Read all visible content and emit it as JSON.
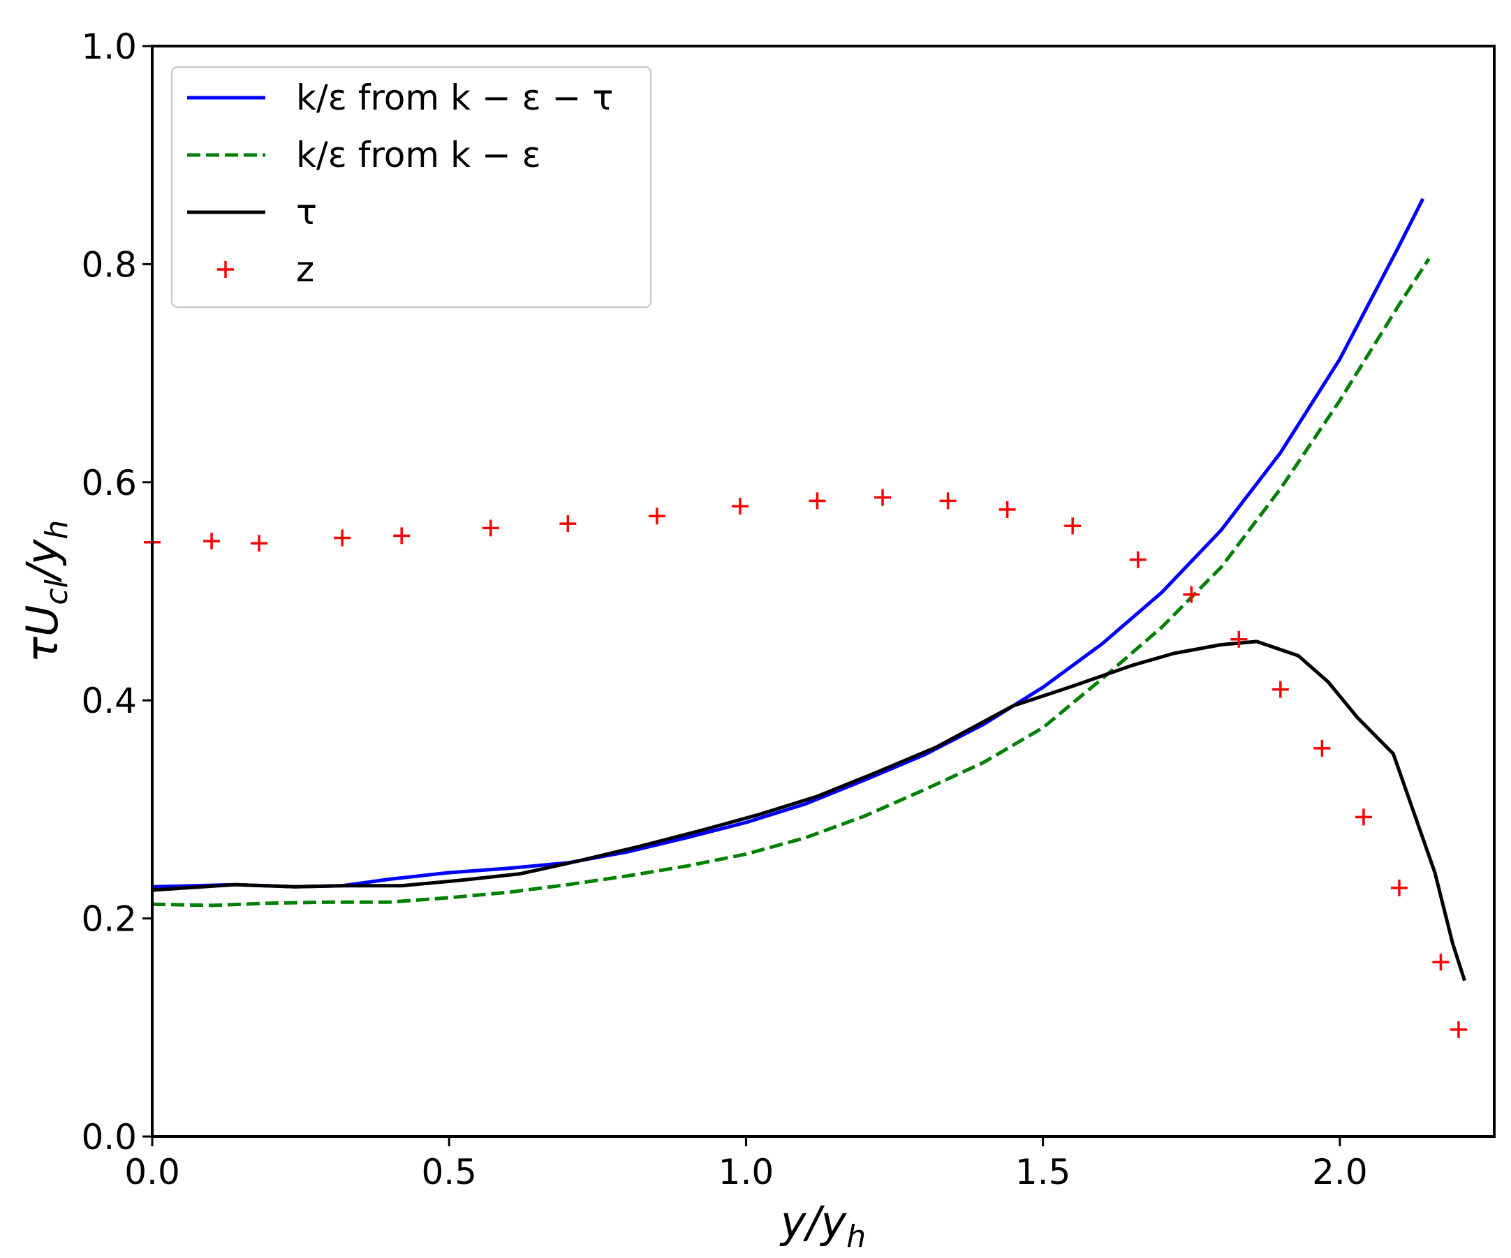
{
  "chart_data": {
    "type": "line",
    "xlabel": "y/y_h",
    "ylabel": "τU_cl/y_h",
    "xlabel_parts": {
      "base": "y/y",
      "sub": "h"
    },
    "ylabel_parts": {
      "pre": "τU",
      "sub1": "cl",
      "mid": "/y",
      "sub2": "h"
    },
    "xlim": [
      0.0,
      2.26
    ],
    "ylim": [
      0.0,
      1.0
    ],
    "xticks": [
      0.0,
      0.5,
      1.0,
      1.5,
      2.0
    ],
    "xtick_labels": [
      "0.0",
      "0.5",
      "1.0",
      "1.5",
      "2.0"
    ],
    "yticks": [
      0.0,
      0.2,
      0.4,
      0.6,
      0.8,
      1.0
    ],
    "ytick_labels": [
      "0.0",
      "0.2",
      "0.4",
      "0.6",
      "0.8",
      "1.0"
    ],
    "grid": false,
    "legend_position": "upper-left",
    "series": [
      {
        "name": "k/ε from k − ε − τ",
        "style": "solid",
        "color": "#0000ff",
        "x": [
          0.0,
          0.14,
          0.24,
          0.32,
          0.4,
          0.5,
          0.6,
          0.7,
          0.8,
          0.9,
          1.0,
          1.1,
          1.2,
          1.3,
          1.4,
          1.5,
          1.6,
          1.7,
          1.8,
          1.9,
          2.0,
          2.1,
          2.14
        ],
        "y": [
          0.229,
          0.231,
          0.229,
          0.23,
          0.236,
          0.242,
          0.246,
          0.251,
          0.261,
          0.274,
          0.288,
          0.305,
          0.327,
          0.35,
          0.378,
          0.412,
          0.452,
          0.499,
          0.556,
          0.627,
          0.713,
          0.817,
          0.86
        ]
      },
      {
        "name": "k/ε from k − ε",
        "style": "dashed",
        "color": "#008000",
        "x": [
          0.0,
          0.1,
          0.2,
          0.3,
          0.4,
          0.5,
          0.6,
          0.7,
          0.8,
          0.9,
          1.0,
          1.1,
          1.2,
          1.3,
          1.4,
          1.5,
          1.6,
          1.7,
          1.8,
          1.9,
          2.0,
          2.1,
          2.15
        ],
        "y": [
          0.213,
          0.212,
          0.214,
          0.215,
          0.215,
          0.219,
          0.224,
          0.231,
          0.239,
          0.248,
          0.259,
          0.274,
          0.294,
          0.318,
          0.343,
          0.375,
          0.42,
          0.467,
          0.522,
          0.594,
          0.675,
          0.763,
          0.805
        ]
      },
      {
        "name": "τ",
        "style": "solid",
        "color": "#000000",
        "x": [
          0.0,
          0.14,
          0.24,
          0.32,
          0.42,
          0.52,
          0.62,
          0.72,
          0.82,
          0.92,
          1.02,
          1.12,
          1.22,
          1.32,
          1.45,
          1.55,
          1.65,
          1.72,
          1.8,
          1.86,
          1.93,
          1.98,
          2.03,
          2.09,
          2.16,
          2.19,
          2.21
        ],
        "y": [
          0.226,
          0.231,
          0.229,
          0.23,
          0.23,
          0.235,
          0.241,
          0.253,
          0.266,
          0.28,
          0.295,
          0.312,
          0.334,
          0.357,
          0.395,
          0.413,
          0.432,
          0.443,
          0.451,
          0.454,
          0.441,
          0.417,
          0.384,
          0.351,
          0.242,
          0.177,
          0.143
        ]
      },
      {
        "name": "z",
        "style": "marker",
        "marker": "+",
        "color": "#ff0000",
        "x": [
          0.0,
          0.1,
          0.18,
          0.32,
          0.42,
          0.57,
          0.7,
          0.85,
          0.99,
          1.12,
          1.23,
          1.34,
          1.44,
          1.55,
          1.66,
          1.75,
          1.83,
          1.9,
          1.97,
          2.04,
          2.1,
          2.17,
          2.2
        ],
        "y": [
          0.545,
          0.546,
          0.544,
          0.549,
          0.551,
          0.558,
          0.562,
          0.569,
          0.578,
          0.583,
          0.586,
          0.583,
          0.575,
          0.56,
          0.529,
          0.497,
          0.456,
          0.41,
          0.356,
          0.293,
          0.228,
          0.16,
          0.098
        ]
      }
    ]
  }
}
